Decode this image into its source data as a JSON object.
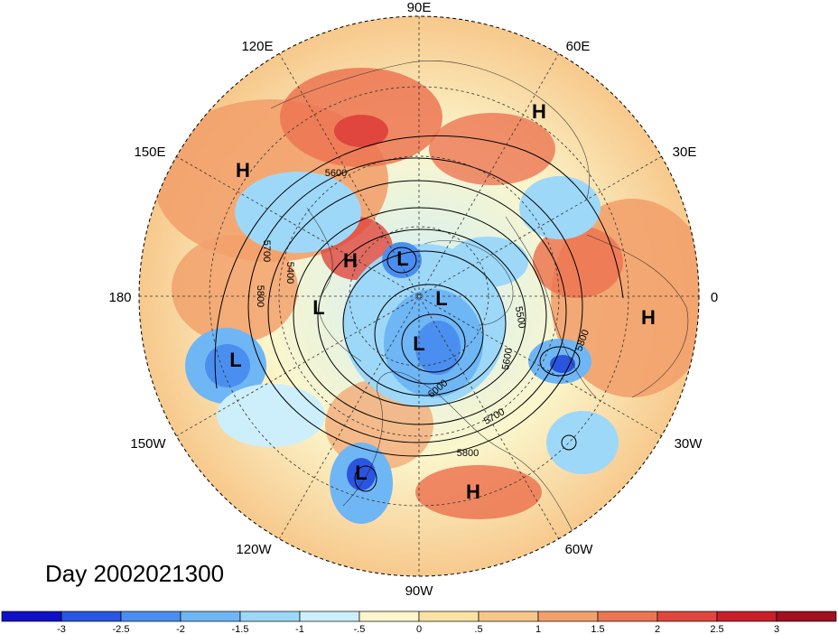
{
  "title": "Day 2002021300",
  "longitude_labels": [
    "90E",
    "60E",
    "120E",
    "30E",
    "150E",
    "180",
    "0",
    "150W",
    "30W",
    "120W",
    "60W",
    "90W"
  ],
  "pressure_systems": [
    "H",
    "H",
    "H",
    "H",
    "H",
    "L",
    "L",
    "L",
    "L",
    "L",
    "L"
  ],
  "contour_labels": [
    "5600",
    "5700",
    "5400",
    "5800",
    "5500",
    "5600",
    "5800",
    "5700",
    "5800",
    "6000"
  ],
  "colorbar": {
    "ticks": [
      "-3",
      "-2.5",
      "-2",
      "-1.5",
      "-1",
      "-.5",
      "0",
      ".5",
      "1",
      "1.5",
      "2",
      "2.5",
      "3"
    ],
    "colors": [
      "#1010c8",
      "#2a55e0",
      "#4a8ff0",
      "#6fb6f5",
      "#9ed8f8",
      "#cdeffb",
      "#fbf6cc",
      "#f9e3a3",
      "#f7c78a",
      "#f2a16c",
      "#ec7552",
      "#e0463d",
      "#c81f2a",
      "#a01020"
    ]
  }
}
